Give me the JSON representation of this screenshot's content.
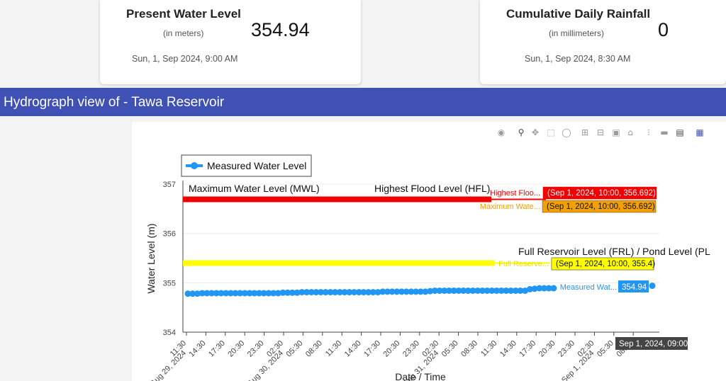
{
  "cards": [
    {
      "title": "Present Water Level",
      "unit": "(in meters)",
      "value": "354.94",
      "timestamp": "Sun, 1, Sep 2024, 9:00 AM"
    },
    {
      "title": "Cumulative Daily Rainfall",
      "unit": "(in millimeters)",
      "value": "0",
      "timestamp": "Sun, 1, Sep 2024, 8:30 AM"
    }
  ],
  "banner": {
    "title": "Hydrograph view of - Tawa Reservoir"
  },
  "modebar": {
    "icons": [
      "camera-icon",
      "zoom-icon",
      "pan-icon",
      "box-select-icon",
      "lasso-select-icon",
      "zoom-in-icon",
      "zoom-out-icon",
      "autoscale-icon",
      "reset-axes-icon",
      "spike-lines-icon",
      "hover-closest-icon",
      "hover-compare-icon",
      "plotly-logo-icon"
    ]
  },
  "chart_data": {
    "type": "line",
    "xlabel": "Date / Time",
    "ylabel": "Water Level (m)",
    "ylim": [
      354,
      357
    ],
    "yticks": [
      354,
      355,
      356,
      357
    ],
    "xticks": [
      "11:30",
      "14:30",
      "17:30",
      "20:30",
      "23:30",
      "02:30",
      "05:30",
      "08:30",
      "11:30",
      "14:30",
      "17:30",
      "20:30",
      "23:30",
      "02:30",
      "05:30",
      "08:30",
      "11:30",
      "14:30",
      "17:30",
      "20:30",
      "23:30",
      "02:30",
      "05:30",
      "08:30"
    ],
    "xdate_labels": [
      "Aug 29, 2024",
      "Aug 30, 2024",
      "Aug 31, 2024",
      "Sep 1, 2024"
    ],
    "legend": {
      "entries": [
        "Measured Water Level"
      ],
      "position": "top-left"
    },
    "series": [
      {
        "name": "Measured Water Level",
        "color": "#2196f3",
        "values": [
          354.78,
          354.78,
          354.78,
          354.79,
          354.79,
          354.79,
          354.79,
          354.79,
          354.79,
          354.79,
          354.79,
          354.79,
          354.79,
          354.79,
          354.79,
          354.79,
          354.79,
          354.79,
          354.79,
          354.79,
          354.8,
          354.8,
          354.8,
          354.8,
          354.81,
          354.81,
          354.81,
          354.81,
          354.81,
          354.81,
          354.81,
          354.81,
          354.81,
          354.81,
          354.81,
          354.81,
          354.81,
          354.81,
          354.81,
          354.81,
          354.81,
          354.82,
          354.82,
          354.82,
          354.82,
          354.82,
          354.82,
          354.82,
          354.82,
          354.82,
          354.82,
          354.83,
          354.84,
          354.84,
          354.84,
          354.84,
          354.84,
          354.84,
          354.84,
          354.84,
          354.84,
          354.84,
          354.84,
          354.84,
          354.84,
          354.84,
          354.84,
          354.84,
          354.84,
          354.84,
          354.84,
          354.84,
          354.87,
          354.88,
          354.89,
          354.89,
          354.89,
          354.89
        ],
        "last_point": {
          "label": "Measured Wat...",
          "value": "354.94",
          "y": 354.94
        }
      },
      {
        "name": "Highest Flood Level (HFL)",
        "color": "#f00000",
        "y": 356.692,
        "label": "Highest Floo...",
        "tooltip": "(Sep 1, 2024, 10:00, 356.692)"
      },
      {
        "name": "Maximum Water Level (MWL)",
        "color": "#f4a000",
        "y": 356.692,
        "label": "Maximum Wate...",
        "tooltip": "(Sep 1, 2024, 10:00, 356.692)"
      },
      {
        "name": "Full Reservoir Level (FRL) / Pond Level (PL)",
        "color": "#ffff00",
        "y": 355.4,
        "label": "Full Reserve...",
        "tooltip": "(Sep 1, 2024, 10:00, 355.4)"
      }
    ],
    "annotations": [
      "Maximum Water Level (MWL)",
      "Highest Flood Level (HFL)",
      "Full Reservoir Level (FRL) / Pond Level (PL"
    ],
    "hover_x_label": "Sep 1, 2024, 09:00"
  }
}
